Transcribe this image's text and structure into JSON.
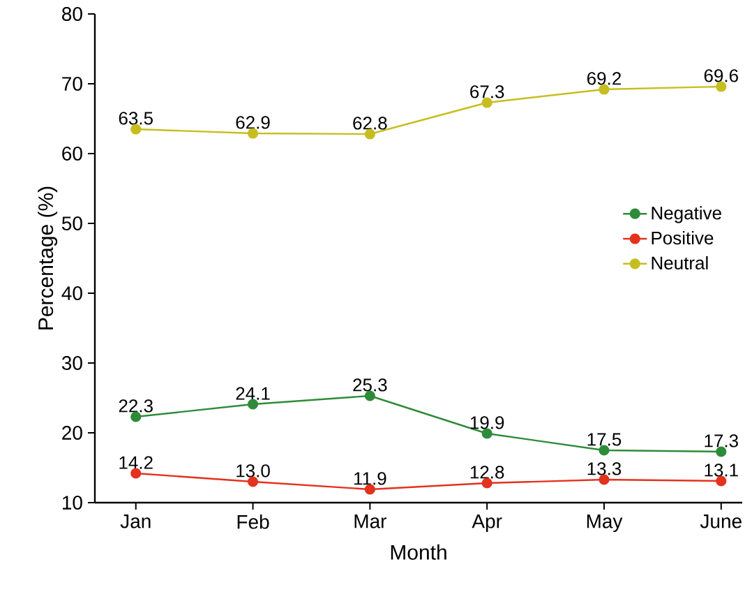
{
  "chart_data": {
    "type": "line",
    "xlabel": "Month",
    "ylabel": "Percentage (%)",
    "categories": [
      "Jan",
      "Feb",
      "Mar",
      "Apr",
      "May",
      "June"
    ],
    "series": [
      {
        "name": "Negative",
        "color": "#2e8b3a",
        "values": [
          22.3,
          24.1,
          25.3,
          19.9,
          17.5,
          17.3
        ],
        "value_labels": [
          "22.3",
          "24.1",
          "25.3",
          "19.9",
          "17.5",
          "17.3"
        ]
      },
      {
        "name": "Positive",
        "color": "#e3321e",
        "values": [
          14.2,
          13.0,
          11.9,
          12.8,
          13.3,
          13.1
        ],
        "value_labels": [
          "14.2",
          "13.0",
          "11.9",
          "12.8",
          "13.3",
          "13.1"
        ]
      },
      {
        "name": "Neutral",
        "color": "#c6be1f",
        "values": [
          63.5,
          62.9,
          62.8,
          67.3,
          69.2,
          69.6
        ],
        "value_labels": [
          "63.5",
          "62.9",
          "62.8",
          "67.3",
          "69.2",
          "69.6"
        ]
      }
    ],
    "ylim": [
      10,
      80
    ],
    "yticks": [
      10,
      20,
      30,
      40,
      50,
      60,
      70,
      80
    ],
    "legend": "right",
    "marker": "circle",
    "line_style": "solid",
    "grid": false
  }
}
